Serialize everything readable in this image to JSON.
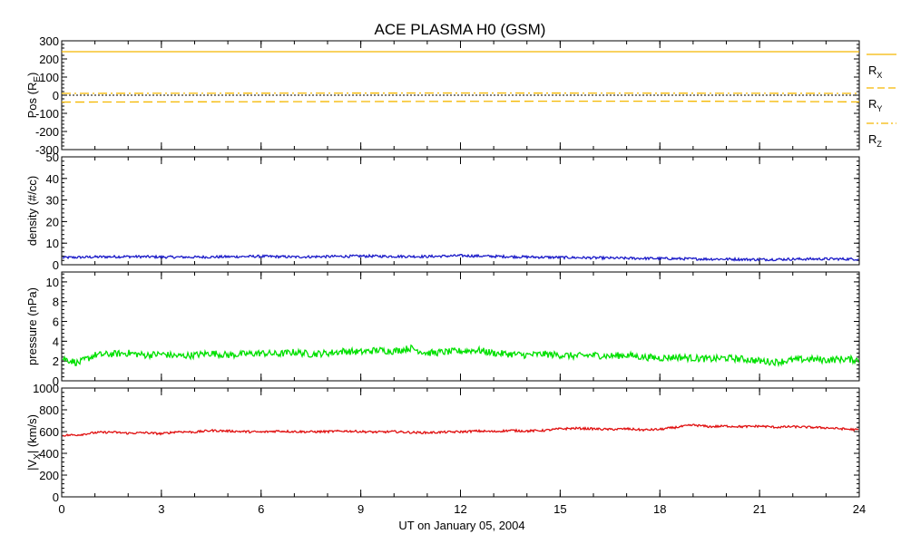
{
  "colors": {
    "background": "#ffffff",
    "axis": "#000000",
    "position": "#f5b800",
    "density": "#1a1ac8",
    "pressure": "#00e000",
    "velocity": "#e01010"
  },
  "chart_data": {
    "type": "line",
    "title": "ACE PLASMA H0 (GSM)",
    "xlabel": "UT on January 05, 2004",
    "x_ticks": [
      "0",
      "3",
      "6",
      "9",
      "12",
      "15",
      "18",
      "21",
      "24"
    ],
    "xlim": [
      0,
      24
    ],
    "panels": [
      {
        "id": "pos",
        "ylabel": "Pos (R",
        "ylabel_sub": "E",
        "ylabel_suffix": ")",
        "ylim": [
          -300,
          300
        ],
        "y_ticks": [
          "300",
          "200",
          "100",
          "0",
          "-100",
          "-200",
          "-300"
        ],
        "zero_line": true,
        "series": [
          {
            "name": "R",
            "sub": "X",
            "style": "solid",
            "x": [
              0,
              24
            ],
            "values": [
              240,
              240
            ]
          },
          {
            "name": "R",
            "sub": "Y",
            "style": "dash",
            "x": [
              0,
              3,
              6,
              9,
              12,
              15,
              18,
              21,
              24
            ],
            "values": [
              -38,
              -37,
              -36,
              -35,
              -34,
              -33,
              -33,
              -34,
              -37
            ]
          },
          {
            "name": "R",
            "sub": "Z",
            "style": "dashdot",
            "x": [
              0,
              6,
              12,
              18,
              24
            ],
            "values": [
              10,
              11,
              12,
              11,
              10
            ]
          }
        ]
      },
      {
        "id": "density",
        "ylabel": "density (#/cc)",
        "ylim": [
          0,
          50
        ],
        "y_ticks": [
          "50",
          "40",
          "30",
          "20",
          "10",
          "0"
        ],
        "series": [
          {
            "name": "",
            "x": [
              0,
              1,
              2,
              3,
              4,
              5,
              6,
              7,
              8,
              9,
              10,
              11,
              12,
              13,
              14,
              15,
              16,
              17,
              18,
              19,
              20,
              21,
              22,
              23,
              24
            ],
            "values": [
              3.3,
              3.6,
              3.8,
              3.6,
              3.5,
              3.7,
              3.9,
              3.6,
              3.8,
              4.0,
              3.9,
              3.8,
              4.2,
              3.9,
              3.6,
              3.4,
              3.2,
              3.0,
              2.9,
              2.7,
              2.6,
              2.4,
              2.6,
              2.7,
              2.6
            ]
          }
        ]
      },
      {
        "id": "pressure",
        "ylabel": "pressure (nPa)",
        "ylim": [
          0,
          11
        ],
        "y_ticks": [
          "10",
          "8",
          "6",
          "4",
          "2",
          "0"
        ],
        "series": [
          {
            "name": "",
            "x": [
              0,
              0.5,
              1,
              1.5,
              2,
              2.5,
              3,
              3.5,
              4,
              4.5,
              5,
              5.5,
              6,
              6.5,
              7,
              7.5,
              8,
              8.5,
              9,
              9.5,
              10,
              10.5,
              11,
              11.5,
              12,
              12.5,
              13,
              13.5,
              14,
              14.5,
              15,
              15.5,
              16,
              16.5,
              17,
              17.5,
              18,
              18.5,
              19,
              19.5,
              20,
              20.5,
              21,
              21.5,
              22,
              22.5,
              23,
              23.5,
              24
            ],
            "values": [
              2.3,
              1.8,
              2.6,
              2.7,
              2.8,
              2.6,
              2.7,
              2.5,
              2.6,
              2.8,
              2.6,
              2.7,
              2.8,
              2.7,
              2.9,
              2.7,
              2.8,
              3.0,
              2.9,
              3.1,
              3.0,
              3.3,
              2.8,
              2.9,
              3.0,
              3.1,
              2.8,
              2.7,
              2.6,
              2.7,
              2.6,
              2.5,
              2.6,
              2.5,
              2.6,
              2.4,
              2.3,
              2.4,
              2.3,
              2.2,
              2.3,
              2.2,
              2.0,
              1.9,
              2.1,
              2.2,
              2.1,
              2.2,
              2.1
            ]
          }
        ]
      },
      {
        "id": "vx",
        "ylabel": "|V",
        "ylabel_sub": "X",
        "ylabel_suffix": "| (km/s)",
        "ylim": [
          0,
          1000
        ],
        "y_ticks": [
          "1000",
          "800",
          "600",
          "400",
          "200",
          "0"
        ],
        "series": [
          {
            "name": "",
            "x": [
              0,
              0.5,
              1,
              1.5,
              2,
              2.5,
              3,
              3.5,
              4,
              4.5,
              5,
              5.5,
              6,
              6.5,
              7,
              7.5,
              8,
              8.5,
              9,
              9.5,
              10,
              10.5,
              11,
              11.5,
              12,
              12.5,
              13,
              13.5,
              14,
              14.5,
              15,
              15.5,
              16,
              16.5,
              17,
              17.5,
              18,
              18.5,
              19,
              19.5,
              20,
              20.5,
              21,
              21.5,
              22,
              22.5,
              23,
              23.5,
              24
            ],
            "values": [
              565,
              570,
              590,
              595,
              585,
              590,
              580,
              600,
              595,
              610,
              605,
              600,
              595,
              605,
              600,
              598,
              600,
              605,
              600,
              595,
              600,
              592,
              590,
              595,
              598,
              605,
              600,
              610,
              605,
              610,
              625,
              630,
              625,
              620,
              625,
              615,
              620,
              640,
              660,
              645,
              650,
              645,
              650,
              640,
              645,
              640,
              635,
              625,
              615
            ]
          }
        ]
      }
    ]
  }
}
